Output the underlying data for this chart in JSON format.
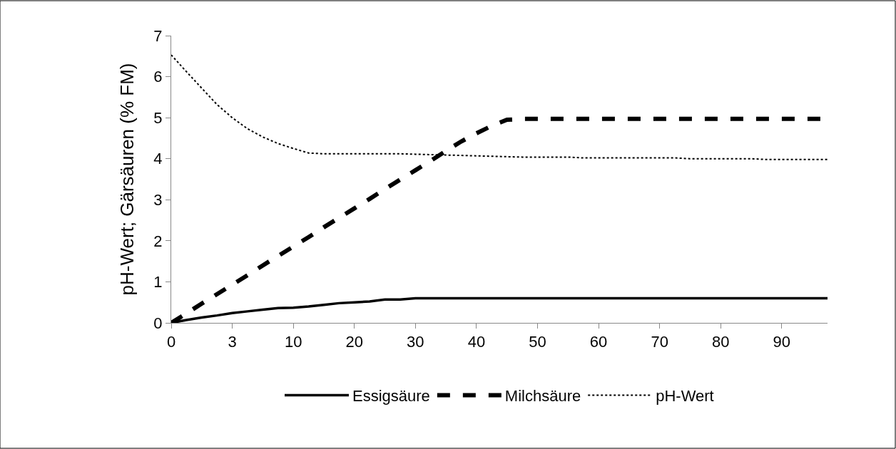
{
  "chart_data": {
    "type": "line",
    "ylabel": "pH-Wert; Gärsäuren (% FM)",
    "ylim": [
      0,
      7
    ],
    "yticks": [
      0,
      1,
      2,
      3,
      4,
      5,
      6,
      7
    ],
    "categories": [
      "0",
      null,
      null,
      null,
      "3",
      null,
      null,
      null,
      "10",
      null,
      null,
      null,
      "20",
      null,
      null,
      null,
      "30",
      null,
      null,
      null,
      "40",
      null,
      null,
      null,
      "50",
      null,
      null,
      null,
      "60",
      null,
      null,
      null,
      "70",
      null,
      null,
      null,
      "80",
      null,
      null,
      null,
      "90",
      null,
      null,
      null
    ],
    "legend": "bottom",
    "series": [
      {
        "name": "Essigsäure",
        "color": "#000000",
        "line_style": "solid",
        "values": [
          0,
          0.07,
          0.13,
          0.18,
          0.24,
          0.28,
          0.32,
          0.36,
          0.37,
          0.4,
          0.44,
          0.48,
          0.5,
          0.52,
          0.57,
          0.57,
          0.6,
          0.6,
          0.6,
          0.6,
          0.6,
          0.6,
          0.6,
          0.6,
          0.6,
          0.6,
          0.6,
          0.6,
          0.6,
          0.6,
          0.6,
          0.6,
          0.6,
          0.6,
          0.6,
          0.6,
          0.6,
          0.6,
          0.6,
          0.6,
          0.6,
          0.6,
          0.6,
          0.6
        ]
      },
      {
        "name": "Milchsäure",
        "color": "#000000",
        "line_style": "dashed",
        "values": [
          0,
          0.23,
          0.47,
          0.7,
          0.93,
          1.16,
          1.4,
          1.63,
          1.86,
          2.09,
          2.33,
          2.56,
          2.79,
          3.02,
          3.26,
          3.49,
          3.72,
          3.95,
          4.19,
          4.42,
          4.62,
          4.8,
          4.95,
          4.97,
          4.97,
          4.97,
          4.97,
          4.97,
          4.97,
          4.97,
          4.97,
          4.97,
          4.97,
          4.97,
          4.97,
          4.97,
          4.97,
          4.97,
          4.97,
          4.97,
          4.97,
          4.97,
          4.97,
          4.97
        ]
      },
      {
        "name": "pH-Wert",
        "color": "#000000",
        "line_style": "dotted",
        "values": [
          6.53,
          6.12,
          5.72,
          5.32,
          5.0,
          4.73,
          4.53,
          4.37,
          4.25,
          4.14,
          4.12,
          4.12,
          4.12,
          4.12,
          4.12,
          4.12,
          4.11,
          4.1,
          4.09,
          4.08,
          4.07,
          4.06,
          4.05,
          4.04,
          4.04,
          4.04,
          4.04,
          4.02,
          4.02,
          4.02,
          4.02,
          4.02,
          4.02,
          4.02,
          4.0,
          4.0,
          4.0,
          4.0,
          4.0,
          3.98,
          3.98,
          3.98,
          3.98,
          3.98
        ]
      }
    ]
  }
}
